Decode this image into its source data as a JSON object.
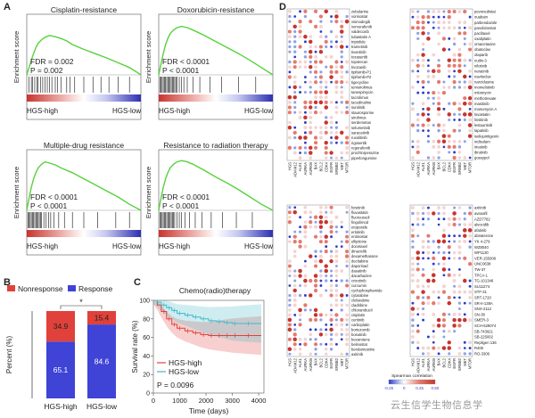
{
  "panels": {
    "a": "A",
    "b": "B",
    "c": "C",
    "d": "D"
  },
  "gsea_common": {
    "ylabel": "Enrichment score",
    "left": "HGS-high",
    "right": "HGS-low"
  },
  "chart_data": [
    {
      "type": "line",
      "panel": "A",
      "title": "Cisplatin-resistance",
      "fdr_text": "FDR = 0.002",
      "p_text": "P = 0.002",
      "x": [
        0,
        0.02,
        0.05,
        0.08,
        0.1,
        0.13,
        0.16,
        0.2,
        0.25,
        0.3,
        0.35,
        0.4,
        0.5,
        0.6,
        0.7,
        0.8,
        0.9,
        0.96,
        1
      ],
      "values": [
        0,
        0.12,
        0.3,
        0.45,
        0.52,
        0.58,
        0.62,
        0.65,
        0.63,
        0.6,
        0.56,
        0.5,
        0.42,
        0.35,
        0.28,
        0.2,
        0.12,
        0.05,
        0
      ],
      "hits": [
        0.02,
        0.04,
        0.05,
        0.07,
        0.09,
        0.1,
        0.12,
        0.14,
        0.16,
        0.18,
        0.2,
        0.22,
        0.25,
        0.27,
        0.3,
        0.35,
        0.38,
        0.42,
        0.5,
        0.58,
        0.65,
        0.72,
        0.8,
        0.9
      ]
    },
    {
      "type": "line",
      "panel": "A",
      "title": "Doxorubicin-resistance",
      "fdr_text": "FDR < 0.0001",
      "p_text": "P < 0.0001",
      "x": [
        0,
        0.02,
        0.04,
        0.06,
        0.08,
        0.1,
        0.13,
        0.16,
        0.2,
        0.25,
        0.3,
        0.4,
        0.5,
        0.6,
        0.7,
        0.8,
        0.9,
        1
      ],
      "values": [
        0,
        0.18,
        0.35,
        0.5,
        0.6,
        0.68,
        0.74,
        0.78,
        0.8,
        0.78,
        0.74,
        0.65,
        0.55,
        0.45,
        0.35,
        0.24,
        0.12,
        0
      ],
      "hits": [
        0.01,
        0.02,
        0.03,
        0.04,
        0.05,
        0.06,
        0.07,
        0.08,
        0.09,
        0.1,
        0.11,
        0.12,
        0.13,
        0.14,
        0.15,
        0.16,
        0.18,
        0.2,
        0.22,
        0.25,
        0.3,
        0.36,
        0.45,
        0.55,
        0.7,
        0.85
      ]
    },
    {
      "type": "line",
      "panel": "A",
      "title": "Multiple-drug resistance",
      "fdr_text": "FDR < 0.0001",
      "p_text": "P < 0.0001",
      "x": [
        0,
        0.02,
        0.04,
        0.06,
        0.08,
        0.1,
        0.13,
        0.16,
        0.2,
        0.25,
        0.3,
        0.4,
        0.5,
        0.6,
        0.7,
        0.8,
        0.9,
        1
      ],
      "values": [
        0,
        0.2,
        0.38,
        0.52,
        0.62,
        0.7,
        0.76,
        0.8,
        0.78,
        0.75,
        0.7,
        0.62,
        0.52,
        0.42,
        0.32,
        0.22,
        0.1,
        0
      ],
      "hits": [
        0.01,
        0.02,
        0.03,
        0.04,
        0.05,
        0.06,
        0.07,
        0.08,
        0.09,
        0.1,
        0.11,
        0.12,
        0.13,
        0.15,
        0.17,
        0.19,
        0.21,
        0.24,
        0.28,
        0.33,
        0.4,
        0.5,
        0.62,
        0.78,
        0.9
      ]
    },
    {
      "type": "line",
      "panel": "A",
      "title": "Resistance to radiation therapy",
      "fdr_text": "FDR < 0.0001",
      "p_text": "P < 0.0001",
      "x": [
        0,
        0.02,
        0.04,
        0.06,
        0.08,
        0.1,
        0.13,
        0.16,
        0.2,
        0.25,
        0.3,
        0.4,
        0.5,
        0.6,
        0.7,
        0.8,
        0.9,
        1
      ],
      "values": [
        0,
        0.2,
        0.38,
        0.52,
        0.62,
        0.7,
        0.76,
        0.8,
        0.82,
        0.8,
        0.76,
        0.66,
        0.55,
        0.45,
        0.34,
        0.22,
        0.1,
        0
      ],
      "hits": [
        0.01,
        0.02,
        0.03,
        0.04,
        0.05,
        0.06,
        0.07,
        0.08,
        0.09,
        0.1,
        0.11,
        0.12,
        0.13,
        0.14,
        0.16,
        0.18,
        0.2,
        0.23,
        0.27,
        0.32,
        0.38,
        0.46,
        0.56,
        0.68,
        0.82
      ]
    },
    {
      "type": "bar",
      "panel": "B",
      "categories": [
        "HGS-high",
        "HGS-low"
      ],
      "ylabel": "Percent (%)",
      "ylim": [
        0,
        100
      ],
      "significance": "*",
      "series": [
        {
          "name": "Response",
          "values": [
            65.1,
            84.6
          ],
          "labels": [
            "65.1",
            "84.6"
          ],
          "color": "#3f43d6"
        },
        {
          "name": "Nonresponse",
          "values": [
            34.9,
            15.4
          ],
          "labels": [
            "34.9",
            "15.4"
          ],
          "color": "#e0413a"
        }
      ]
    },
    {
      "type": "line",
      "panel": "C",
      "title": "Chemo(radio)therapy",
      "xlabel": "Time (days)",
      "ylabel": "Survival rate (%)",
      "xticks": [
        "0",
        "1000",
        "2000",
        "3000",
        "4000"
      ],
      "yticks": [
        "0",
        "20",
        "40",
        "60",
        "80",
        "100"
      ],
      "xlim": [
        0,
        4200
      ],
      "ylim": [
        0,
        100
      ],
      "p_text": "P = 0.0096",
      "series": [
        {
          "name": "HGS-high",
          "color": "#e0413a",
          "x": [
            0,
            150,
            300,
            500,
            700,
            900,
            1200,
            1500,
            1800,
            2100,
            2400,
            2700,
            3000,
            3500,
            4100
          ],
          "y": [
            100,
            95,
            88,
            80,
            74,
            70,
            67,
            65,
            63,
            62,
            62,
            62,
            62,
            62,
            62
          ]
        },
        {
          "name": "HGS-low",
          "color": "#3fb8c8",
          "x": [
            0,
            150,
            300,
            500,
            700,
            900,
            1200,
            1500,
            1800,
            2100,
            2400,
            2700,
            3000,
            3500,
            4100
          ],
          "y": [
            100,
            98,
            95,
            92,
            89,
            86,
            84,
            82,
            80,
            78,
            77,
            76,
            75,
            75,
            75
          ]
        }
      ]
    },
    {
      "type": "heatmap",
      "panel": "D",
      "legend_title": "Spearman correlation",
      "scale_ticks": [
        "-0.25",
        "0",
        "0.25",
        "0.50"
      ],
      "quadrants": [
        {
          "drugs": [
            "zebularine",
            "vorinostat",
            "vismodegib",
            "vemurafenib",
            "valdecoxib",
            "tubastatin A",
            "triptolide",
            "trametinib",
            "tivantinib",
            "tozasertib",
            "topotecan",
            "tivozanib",
            "tipifarnib-P1",
            "tipifarnib-P2",
            "tigecycline",
            "temsirolimus",
            "tanespimycin",
            "tacrolimus",
            "tacedinaline",
            "sunitinib",
            "staurosporine",
            "sirolimus",
            "serdemetan",
            "selumetinib",
            "saracatinib",
            "ruxolitinib",
            "rigosertib",
            "regorafenib",
            "prochlorperazine",
            "piperlongumine"
          ],
          "cols": [
            "HGS",
            "ADAM12",
            "ALK1",
            "AURKA",
            "AURKB",
            "BAX",
            "BCL2",
            "CDK4",
            "EGFR",
            "ERBB2",
            "MET",
            "MTOR"
          ]
        },
        {
          "drugs": [
            "pevonedistat",
            "ouabain",
            "parbendazole",
            "panobinostat",
            "paclitaxel",
            "oxaliplatin",
            "omacetaxine",
            "obatoclax",
            "olaparib",
            "nutlin-3",
            "nilotinib",
            "neratinib",
            "navitoclax",
            "narciclasine",
            "momelotinib",
            "mitomycin",
            "methotrexate",
            "masitinib",
            "manumycin A",
            "lovastatin",
            "linsitinib",
            "lestaurtinib",
            "lapatinib",
            "isoliquiritigenin",
            "indisulam",
            "imatinib",
            "ibrutinib",
            "gossypol"
          ],
          "cols": [
            "HGS",
            "ADAM12",
            "ALK1",
            "AURKA",
            "AURKB",
            "BAX",
            "BCL2",
            "CDK4",
            "EGFR",
            "ERBB2",
            "MET",
            "MTOR"
          ]
        },
        {
          "drugs": [
            "foretinib",
            "fluvastatin",
            "fluorouracil",
            "fingolimod",
            "etoposide",
            "erlotinib",
            "entinostat",
            "ellipticine",
            "docetaxel",
            "dinaciclib",
            "dexamethasone",
            "decitabine",
            "daporinad",
            "dasatinib",
            "dacarbazine",
            "crizotinib",
            "curcumin",
            "cyclophosphamide",
            "cytarabine",
            "clofarabine",
            "cladribine",
            "chlorambucil",
            "cisplatin",
            "ceritinib",
            "carboplatin",
            "bortezomib",
            "bosutinib",
            "bexarotene",
            "belinostat",
            "bendamustine",
            "axitinib"
          ],
          "cols": [
            "HGS",
            "ADAM12",
            "ALK1",
            "AURKA",
            "AURKB",
            "BAX",
            "BCL2",
            "CDK4",
            "EGFR",
            "ERBB2",
            "MET",
            "MTOR"
          ]
        },
        {
          "drugs": [
            "axitinib",
            "avanafil",
            "AZD7762",
            "alvocidib",
            "afatinib",
            "abiraterone",
            "YK 4-279",
            "WZ8040",
            "WP1130",
            "VER-155008",
            "UNC0638",
            "TW-37",
            "TPCA-1",
            "TG-101348",
            "SU11274",
            "STF-31",
            "SRT-1720",
            "SR-II-138A",
            "SNX-2112",
            "SN-38",
            "SMER-3",
            "SCH-529074",
            "SB-743921",
            "SB-225002",
            "Repligen 136",
            "R406",
            "RO-3306"
          ],
          "cols": [
            "HGS",
            "ADAM12",
            "ALK1",
            "AURKA",
            "AURKB",
            "BAX",
            "BCL2",
            "CDK4",
            "EGFR",
            "ERBB2",
            "MET",
            "MTOR"
          ]
        }
      ]
    }
  ],
  "watermark": "云生信学生物信息学"
}
